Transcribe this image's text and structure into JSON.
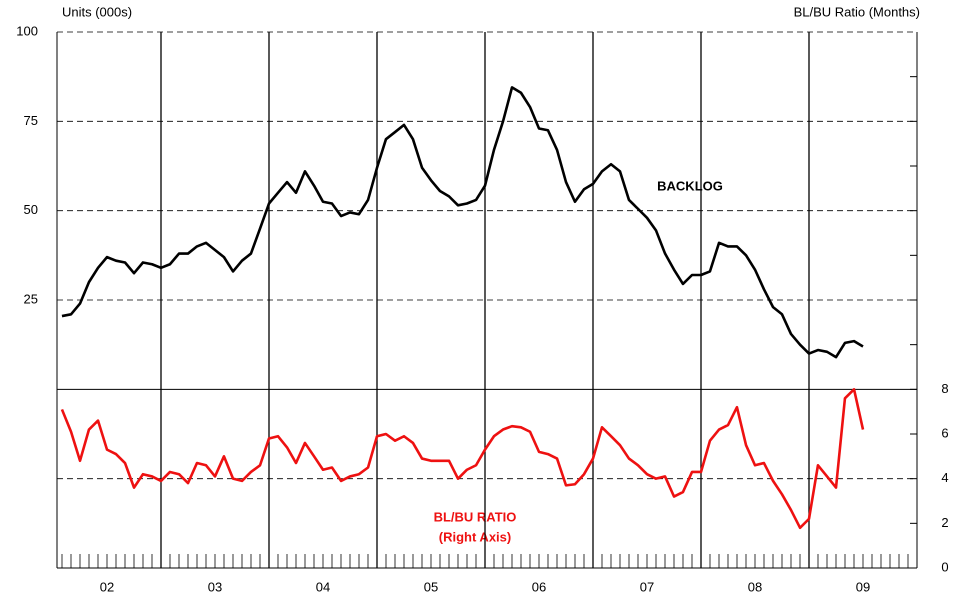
{
  "chart_data": {
    "type": "line",
    "left_axis_label": "Units (000s)",
    "right_axis_label": "BL/BU Ratio (Months)",
    "annotations": [
      "BACKLOG",
      "BL/BU RATIO",
      "(Right Axis)"
    ],
    "xlim": [
      2002,
      2010
    ],
    "xticks": [
      {
        "value": 2002.5,
        "label": "02"
      },
      {
        "value": 2003.5,
        "label": "03"
      },
      {
        "value": 2004.5,
        "label": "04"
      },
      {
        "value": 2005.5,
        "label": "05"
      },
      {
        "value": 2006.5,
        "label": "06"
      },
      {
        "value": 2007.5,
        "label": "07"
      },
      {
        "value": 2008.5,
        "label": "08"
      },
      {
        "value": 2009.5,
        "label": "09"
      }
    ],
    "year_lines": [
      2003,
      2004,
      2005,
      2006,
      2007,
      2008,
      2009
    ],
    "ylim": [
      -50,
      100
    ],
    "yticks": [
      25,
      50,
      75,
      100
    ],
    "y2lim": [
      0,
      24
    ],
    "y2ticks": [
      0,
      2,
      4,
      6,
      8
    ],
    "y2minor_ticks": [
      10,
      12,
      14,
      16,
      18,
      20,
      22
    ],
    "y2grid": [
      4
    ],
    "grid": true,
    "x": [
      2002.083,
      2002.167,
      2002.25,
      2002.333,
      2002.417,
      2002.5,
      2002.583,
      2002.667,
      2002.75,
      2002.833,
      2002.917,
      2003.0,
      2003.083,
      2003.167,
      2003.25,
      2003.333,
      2003.417,
      2003.5,
      2003.583,
      2003.667,
      2003.75,
      2003.833,
      2003.917,
      2004.0,
      2004.083,
      2004.167,
      2004.25,
      2004.333,
      2004.417,
      2004.5,
      2004.583,
      2004.667,
      2004.75,
      2004.833,
      2004.917,
      2005.0,
      2005.083,
      2005.167,
      2005.25,
      2005.333,
      2005.417,
      2005.5,
      2005.583,
      2005.667,
      2005.75,
      2005.833,
      2005.917,
      2006.0,
      2006.083,
      2006.167,
      2006.25,
      2006.333,
      2006.417,
      2006.5,
      2006.583,
      2006.667,
      2006.75,
      2006.833,
      2006.917,
      2007.0,
      2007.083,
      2007.167,
      2007.25,
      2007.333,
      2007.417,
      2007.5,
      2007.583,
      2007.667,
      2007.75,
      2007.833,
      2007.917,
      2008.0,
      2008.083,
      2008.167,
      2008.25,
      2008.333,
      2008.417,
      2008.5,
      2008.583,
      2008.667,
      2008.75,
      2008.833,
      2008.917,
      2009.0,
      2009.083,
      2009.167,
      2009.25,
      2009.333,
      2009.417,
      2009.5
    ],
    "series": [
      {
        "name": "BACKLOG",
        "color": "#000000",
        "axis": "y",
        "values": [
          20.5,
          21,
          24,
          30,
          34,
          37,
          36,
          35.5,
          32.5,
          35.5,
          35,
          34,
          35,
          38,
          38,
          40,
          41,
          39,
          37,
          33,
          36,
          38,
          45,
          52,
          55,
          58,
          55,
          61,
          57,
          52.5,
          52,
          48.5,
          49.5,
          49,
          53,
          62,
          70,
          72,
          74,
          70,
          62,
          58.5,
          55.5,
          54,
          51.5,
          52,
          53,
          57,
          67,
          75,
          84.5,
          83,
          79,
          73,
          72.5,
          67,
          58,
          52.5,
          56,
          57.5,
          61,
          63,
          61,
          53,
          50.5,
          48,
          44.5,
          38,
          33.5,
          29.5,
          32,
          32,
          33,
          41,
          40,
          40,
          37.5,
          33.5,
          28,
          23,
          21,
          15.5,
          12.5,
          10,
          11,
          10.5,
          9,
          13,
          13.5,
          12
        ]
      },
      {
        "name": "BL/BU RATIO",
        "color": "#ee1111",
        "axis": "y2",
        "values": [
          7.1,
          6.1,
          4.8,
          6.2,
          6.6,
          5.3,
          5.1,
          4.7,
          3.6,
          4.2,
          4.1,
          3.9,
          4.3,
          4.2,
          3.8,
          4.7,
          4.6,
          4.1,
          5.0,
          4.0,
          3.9,
          4.3,
          4.6,
          5.8,
          5.9,
          5.4,
          4.7,
          5.6,
          5.0,
          4.4,
          4.5,
          3.9,
          4.1,
          4.2,
          4.5,
          5.9,
          6.0,
          5.7,
          5.9,
          5.6,
          4.9,
          4.8,
          4.8,
          4.8,
          4.0,
          4.4,
          4.6,
          5.3,
          5.9,
          6.2,
          6.35,
          6.3,
          6.1,
          5.2,
          5.1,
          4.9,
          3.7,
          3.75,
          4.2,
          4.9,
          6.3,
          5.9,
          5.5,
          4.9,
          4.6,
          4.2,
          4.0,
          4.1,
          3.2,
          3.4,
          4.3,
          4.3,
          5.7,
          6.2,
          6.4,
          7.2,
          5.5,
          4.6,
          4.7,
          3.9,
          3.3,
          2.6,
          1.8,
          2.2,
          4.6,
          4.1,
          3.6,
          7.6,
          8.0,
          6.2
        ]
      }
    ]
  }
}
